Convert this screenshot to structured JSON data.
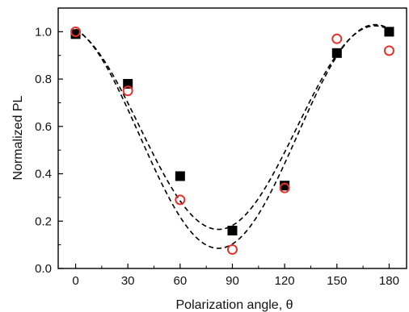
{
  "chart_data": {
    "type": "scatter",
    "title": "",
    "xlabel": "Polarization angle, θ",
    "ylabel": "Normalized PL",
    "xlim": [
      -10,
      190
    ],
    "ylim": [
      0,
      1.1
    ],
    "x_ticks": [
      0,
      30,
      60,
      90,
      120,
      150,
      180
    ],
    "y_ticks": [
      0.0,
      0.2,
      0.4,
      0.6,
      0.8,
      1.0
    ],
    "x_tick_labels": [
      "0",
      "30",
      "60",
      "90",
      "120",
      "150",
      "180"
    ],
    "y_tick_labels": [
      "0.0",
      "0.2",
      "0.4",
      "0.6",
      "0.8",
      "1.0"
    ],
    "grid": false,
    "legend": "none",
    "series": [
      {
        "marker": "filled-square",
        "color": "#000000",
        "x": [
          0,
          30,
          60,
          90,
          120,
          150,
          180
        ],
        "y": [
          0.99,
          0.78,
          0.39,
          0.16,
          0.35,
          0.91,
          1.0
        ]
      },
      {
        "marker": "open-circle",
        "color": "#e8332a",
        "x": [
          0,
          30,
          60,
          90,
          120,
          150,
          180
        ],
        "y": [
          1.0,
          0.75,
          0.29,
          0.08,
          0.34,
          0.97,
          0.92
        ]
      }
    ],
    "fits": [
      {
        "style": "dashed",
        "color": "#000000",
        "model": "cos2",
        "offset": 0.165,
        "amplitude": 0.86,
        "phase_deg": 172
      },
      {
        "style": "dashed",
        "color": "#000000",
        "model": "cos2",
        "offset": 0.085,
        "amplitude": 0.945,
        "phase_deg": 172
      }
    ]
  }
}
